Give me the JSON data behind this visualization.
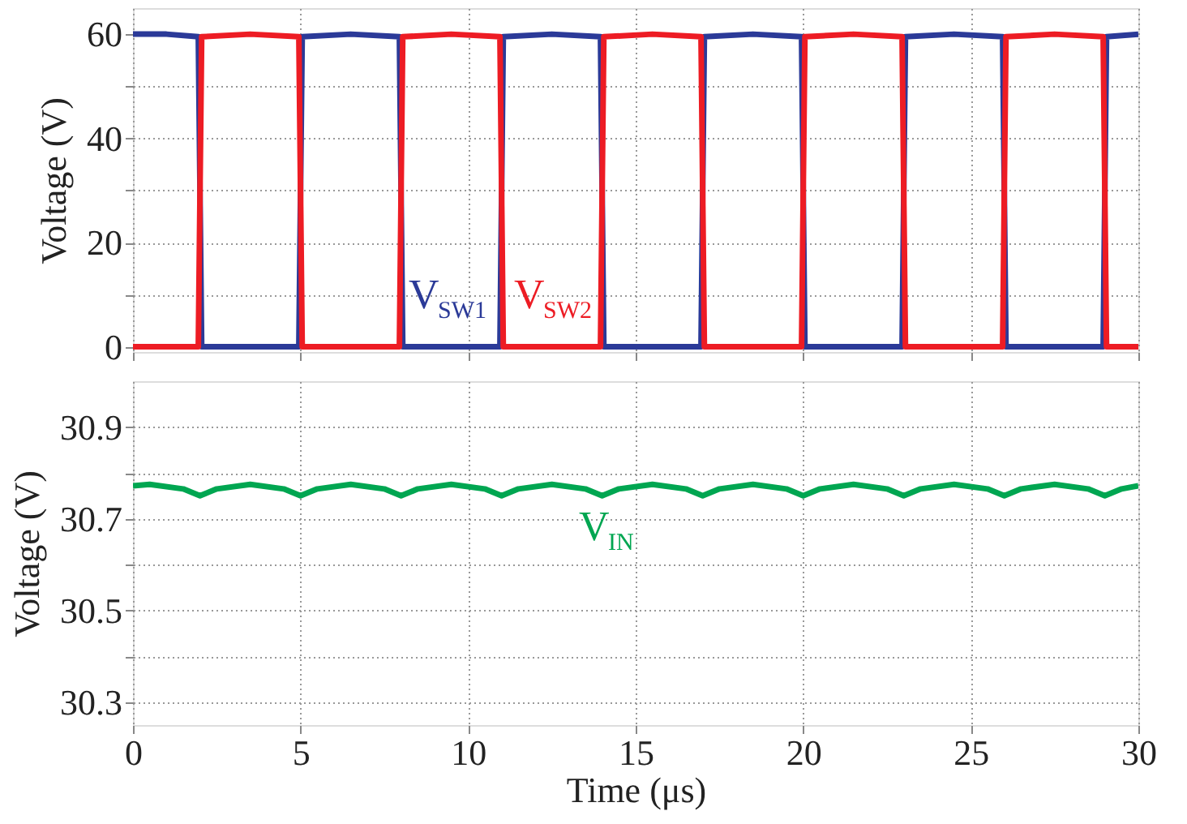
{
  "chart_data": [
    {
      "type": "line",
      "ylabel": "Voltage (V)",
      "xlim": [
        0,
        30
      ],
      "xticks": [
        0,
        5,
        10,
        15,
        20,
        25,
        30
      ],
      "ylim": [
        -1,
        65
      ],
      "yticks": [
        0,
        {
          "value": 10,
          "label": null
        },
        20,
        {
          "value": 30,
          "label": null
        },
        40,
        {
          "value": 50,
          "label": null
        },
        60
      ],
      "grid": true,
      "legend": false,
      "tick_labels": "y",
      "series": [
        {
          "name": "V$_{SW1}$",
          "color": "#2b3a98",
          "x": [
            0,
            1,
            1.95,
            2.05,
            4.95,
            5.05,
            6.5,
            7.95,
            8.05,
            10.95,
            11.05,
            12.5,
            13.95,
            14.05,
            16.95,
            17.05,
            18.5,
            19.95,
            20.05,
            22.95,
            23.05,
            24.5,
            25.95,
            26.05,
            28.95,
            29.05,
            30
          ],
          "values": [
            60,
            60,
            59.5,
            0,
            0,
            59.5,
            60,
            59.5,
            0,
            0,
            59.5,
            60,
            59.5,
            0,
            0,
            59.5,
            60,
            59.5,
            0,
            0,
            59.5,
            60,
            59.5,
            0,
            0,
            59.5,
            60
          ]
        },
        {
          "name": "V$_{SW2}$",
          "color": "#ed1c24",
          "x": [
            0,
            1.95,
            2.05,
            3.5,
            4.95,
            5.05,
            7.95,
            8.05,
            9.5,
            10.95,
            11.05,
            13.95,
            14.05,
            15.5,
            16.95,
            17.05,
            19.95,
            20.05,
            21.5,
            22.95,
            23.05,
            25.95,
            26.05,
            27.5,
            28.95,
            29.05,
            30
          ],
          "values": [
            0,
            0,
            59.5,
            60,
            59.5,
            0,
            0,
            59.5,
            60,
            59.5,
            0,
            0,
            59.5,
            60,
            59.5,
            0,
            0,
            59.5,
            60,
            59.5,
            0,
            0,
            59.5,
            60,
            59.5,
            0,
            0
          ]
        }
      ]
    },
    {
      "type": "line",
      "xlabel": "Time (μs)",
      "ylabel": "Voltage (V)",
      "xlim": [
        0,
        30
      ],
      "xticks": [
        0,
        5,
        10,
        15,
        20,
        25,
        30
      ],
      "ylim": [
        30.25,
        31.0
      ],
      "yticks": [
        30.3,
        {
          "value": 30.4,
          "label": null
        },
        30.5,
        {
          "value": 30.6,
          "label": null
        },
        30.7,
        {
          "value": 30.8,
          "label": null
        },
        30.9
      ],
      "grid": true,
      "legend": false,
      "series": [
        {
          "name": "V$_{IN}$",
          "color": "#00a651",
          "x": [
            0,
            0.5,
            1.5,
            2,
            2.5,
            3.5,
            4.5,
            5,
            5.5,
            6.5,
            7.5,
            8,
            8.5,
            9.5,
            10.5,
            11,
            11.5,
            12.5,
            13.5,
            14,
            14.5,
            15.5,
            16.5,
            17,
            17.5,
            18.5,
            19.5,
            20,
            20.5,
            21.5,
            22.5,
            23,
            23.5,
            24.5,
            25.5,
            26,
            26.5,
            27.5,
            28.5,
            29,
            29.5,
            30
          ],
          "values": [
            30.772,
            30.775,
            30.765,
            30.75,
            30.765,
            30.775,
            30.765,
            30.75,
            30.765,
            30.775,
            30.765,
            30.75,
            30.765,
            30.775,
            30.765,
            30.75,
            30.765,
            30.775,
            30.765,
            30.75,
            30.765,
            30.775,
            30.765,
            30.75,
            30.765,
            30.775,
            30.765,
            30.75,
            30.765,
            30.775,
            30.765,
            30.75,
            30.765,
            30.775,
            30.765,
            30.75,
            30.765,
            30.775,
            30.765,
            30.75,
            30.765,
            30.772
          ]
        }
      ]
    }
  ]
}
